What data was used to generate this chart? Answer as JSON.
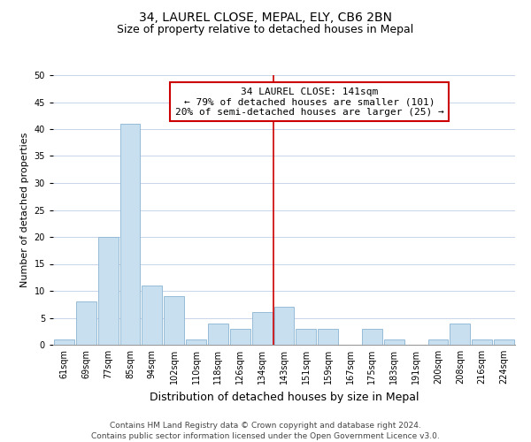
{
  "title": "34, LAUREL CLOSE, MEPAL, ELY, CB6 2BN",
  "subtitle": "Size of property relative to detached houses in Mepal",
  "xlabel": "Distribution of detached houses by size in Mepal",
  "ylabel": "Number of detached properties",
  "bin_labels": [
    "61sqm",
    "69sqm",
    "77sqm",
    "85sqm",
    "94sqm",
    "102sqm",
    "110sqm",
    "118sqm",
    "126sqm",
    "134sqm",
    "143sqm",
    "151sqm",
    "159sqm",
    "167sqm",
    "175sqm",
    "183sqm",
    "191sqm",
    "200sqm",
    "208sqm",
    "216sqm",
    "224sqm"
  ],
  "bar_heights": [
    1,
    8,
    20,
    41,
    11,
    9,
    1,
    4,
    3,
    6,
    7,
    3,
    3,
    0,
    3,
    1,
    0,
    1,
    4,
    1,
    1
  ],
  "bar_color": "#c8dff0",
  "bar_edge_color": "#8ab4d4",
  "ylim": [
    0,
    50
  ],
  "yticks": [
    0,
    5,
    10,
    15,
    20,
    25,
    30,
    35,
    40,
    45,
    50
  ],
  "vline_bin": 10,
  "vline_color": "#cc0000",
  "annotation_title": "34 LAUREL CLOSE: 141sqm",
  "annotation_line1": "← 79% of detached houses are smaller (101)",
  "annotation_line2": "20% of semi-detached houses are larger (25) →",
  "annotation_box_color": "#ffffff",
  "annotation_border_color": "#cc0000",
  "footer_line1": "Contains HM Land Registry data © Crown copyright and database right 2024.",
  "footer_line2": "Contains public sector information licensed under the Open Government Licence v3.0.",
  "bg_color": "#ffffff",
  "grid_color": "#c8d4e8",
  "title_fontsize": 10,
  "subtitle_fontsize": 9,
  "xlabel_fontsize": 9,
  "ylabel_fontsize": 8,
  "tick_fontsize": 7,
  "annotation_fontsize": 8,
  "footer_fontsize": 6.5
}
